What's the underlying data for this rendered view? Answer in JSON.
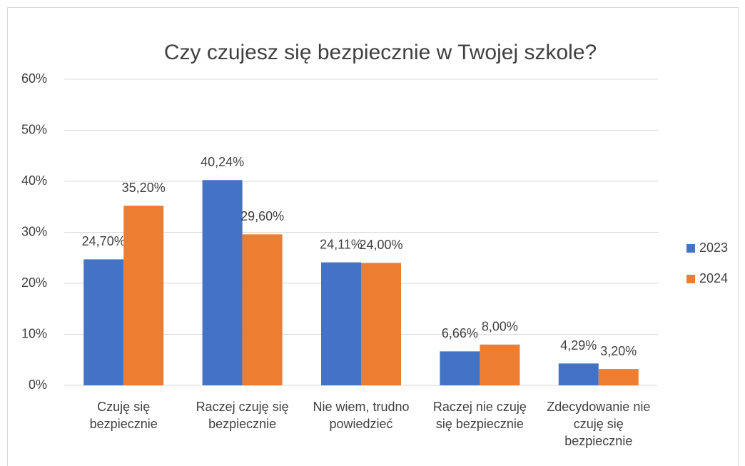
{
  "chart_data": {
    "type": "bar",
    "title": "Czy czujesz się bezpiecznie w Twojej szkole?",
    "categories": [
      "Czuję się bezpiecznie",
      "Raczej czuję się bezpiecznie",
      "Nie wiem, trudno powiedzieć",
      "Raczej nie czuję się bezpiecznie",
      "Zdecydowanie nie czuję się bezpiecznie"
    ],
    "series": [
      {
        "name": "2023",
        "color": "#4472c4",
        "values": [
          24.7,
          40.24,
          24.11,
          6.66,
          4.29
        ],
        "value_labels": [
          "24,70%",
          "40,24%",
          "24,11%",
          "6,66%",
          "4,29%"
        ]
      },
      {
        "name": "2024",
        "color": "#ed7d31",
        "values": [
          35.2,
          29.6,
          24.0,
          8.0,
          3.2
        ],
        "value_labels": [
          "35,20%",
          "29,60%",
          "24,00%",
          "8,00%",
          "3,20%"
        ]
      }
    ],
    "ylim": [
      0,
      60
    ],
    "yticks": [
      {
        "value": 0,
        "label": "0%"
      },
      {
        "value": 10,
        "label": "10%"
      },
      {
        "value": 20,
        "label": "20%"
      },
      {
        "value": 30,
        "label": "30%"
      },
      {
        "value": 40,
        "label": "40%"
      },
      {
        "value": 50,
        "label": "50%"
      },
      {
        "value": 60,
        "label": "60%"
      }
    ],
    "grid": true,
    "legend": "right"
  }
}
